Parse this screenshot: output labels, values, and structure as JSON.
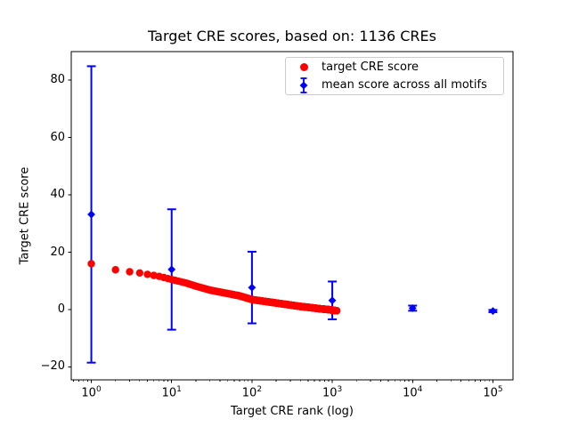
{
  "chart_data": {
    "type": "scatter",
    "title": "Target CRE scores, based on: 1136 CREs",
    "xlabel": "Target CRE rank (log)",
    "ylabel": "Target CRE score",
    "x_scale": "log",
    "xlim_log10": [
      -0.25,
      5.25
    ],
    "ylim": [
      -24.5,
      90
    ],
    "x_major_tick_exponents": [
      0,
      1,
      2,
      3,
      4,
      5
    ],
    "x_tick_base": "10",
    "y_ticks": [
      -20,
      0,
      20,
      40,
      60,
      80
    ],
    "grid": false,
    "legend_position": "upper right",
    "series": [
      {
        "name": "target CRE score",
        "kind": "scatter",
        "marker": "circle",
        "color": "#ff0000",
        "n_points": 1136,
        "curve_anchors": [
          [
            1,
            16.0
          ],
          [
            2,
            13.9
          ],
          [
            3,
            13.2
          ],
          [
            4,
            12.8
          ],
          [
            5,
            12.3
          ],
          [
            7,
            11.6
          ],
          [
            10,
            10.5
          ],
          [
            15,
            9.3
          ],
          [
            20,
            8.2
          ],
          [
            30,
            6.8
          ],
          [
            50,
            5.6
          ],
          [
            70,
            4.8
          ],
          [
            100,
            3.5
          ],
          [
            150,
            2.8
          ],
          [
            200,
            2.3
          ],
          [
            300,
            1.6
          ],
          [
            400,
            1.1
          ],
          [
            500,
            0.8
          ],
          [
            700,
            0.3
          ],
          [
            900,
            0.0
          ],
          [
            1136,
            -0.4
          ]
        ]
      },
      {
        "name": "mean score across all motifs",
        "kind": "errorbar",
        "marker": "diamond",
        "color": "#0000ff",
        "x": [
          1,
          10,
          100,
          1000,
          10000,
          100000
        ],
        "mean": [
          33.2,
          14.0,
          7.7,
          3.2,
          0.5,
          -0.5
        ],
        "err": [
          51.7,
          21.0,
          12.5,
          6.6,
          0.9,
          0.4
        ]
      }
    ]
  }
}
